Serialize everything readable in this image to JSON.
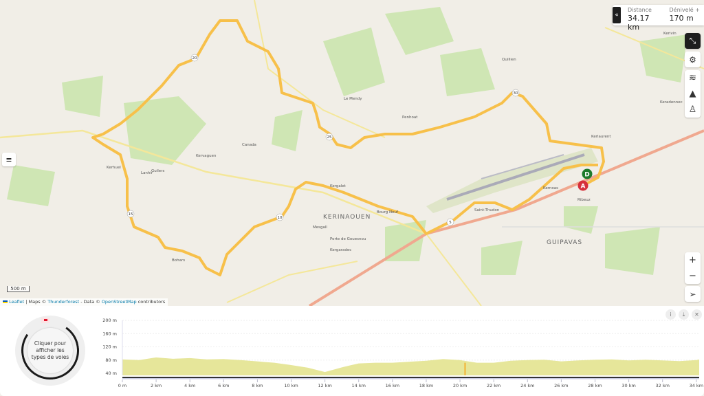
{
  "stats": {
    "distance_label": "Distance",
    "distance_value": "34.17 km",
    "elevation_label": "Dénivelé +",
    "elevation_value": "170 m",
    "collapse_icon": "chevrons-left-icon"
  },
  "toolbar": {
    "items": [
      {
        "icon": "fullscreen-exit-icon"
      },
      {
        "icon": "gear-icon"
      },
      {
        "icon": "layers-icon"
      },
      {
        "icon": "mountain-icon"
      },
      {
        "icon": "person-pin-icon"
      }
    ]
  },
  "zoom": {
    "in": "+",
    "out": "−",
    "locate_icon": "location-arrow-icon"
  },
  "map": {
    "scale": "500 m",
    "attribution": {
      "leaflet": "Leaflet",
      "sep1": " | Maps © ",
      "maps": "Thunderforest",
      "sep2": " - Data © ",
      "data": "OpenStreetMap",
      "suffix": " contributors"
    },
    "places": [
      "KERINAOUEN",
      "GUIPAVAS",
      "Porte de Gouesnou",
      "Kergaradec",
      "Guilers",
      "Bohars",
      "Le Mendy",
      "Kerivin",
      "Mesgall",
      "Bourg Neuf",
      "Penhoat",
      "Kerlaurent",
      "Quillien",
      "Saint-Thudon",
      "Kerhuel",
      "Kervaguen",
      "Canada",
      "Kergalet",
      "Lanhir",
      "Keradennec",
      "Ribeuz",
      "Kernoas"
    ],
    "route_color": "#f7c04a",
    "km_markers": [
      "5",
      "10",
      "15",
      "20",
      "25",
      "30"
    ],
    "start_marker": "A",
    "end_marker": "D"
  },
  "panel": {
    "donut_text": "Cliquer pour afficher les types de voies",
    "buttons": [
      {
        "icon": "info-icon",
        "label": "i"
      },
      {
        "icon": "download-icon",
        "label": "⤓"
      },
      {
        "icon": "close-icon",
        "label": "✕"
      }
    ]
  },
  "chart_data": {
    "type": "area",
    "title": "",
    "xlabel": "",
    "ylabel": "",
    "x_ticks": [
      "0 m",
      "2 km",
      "4 km",
      "6 km",
      "8 km",
      "10 km",
      "12 km",
      "14 km",
      "16 km",
      "18 km",
      "20 km",
      "22 km",
      "24 km",
      "26 km",
      "28 km",
      "30 km",
      "32 km",
      "34 km"
    ],
    "y_ticks": [
      "40 m",
      "80 m",
      "120 m",
      "160 m",
      "200 m"
    ],
    "xlim": [
      0,
      34.17
    ],
    "ylim": [
      30,
      200
    ],
    "x": [
      0,
      1,
      2,
      3,
      4,
      5,
      6,
      7,
      8,
      9,
      10,
      11,
      12,
      13,
      14,
      15,
      16,
      17,
      18,
      19,
      20,
      21,
      22,
      23,
      24,
      25,
      26,
      27,
      28,
      29,
      30,
      31,
      32,
      33,
      34,
      34.17
    ],
    "y": [
      82,
      80,
      88,
      84,
      86,
      82,
      83,
      80,
      76,
      72,
      65,
      57,
      44,
      58,
      70,
      72,
      72,
      75,
      78,
      83,
      80,
      72,
      72,
      78,
      80,
      81,
      76,
      79,
      81,
      82,
      79,
      81,
      79,
      77,
      80,
      82
    ],
    "fill_color": "#e6e69a",
    "marker_km": 20.3,
    "marker_color": "#f2b233"
  }
}
